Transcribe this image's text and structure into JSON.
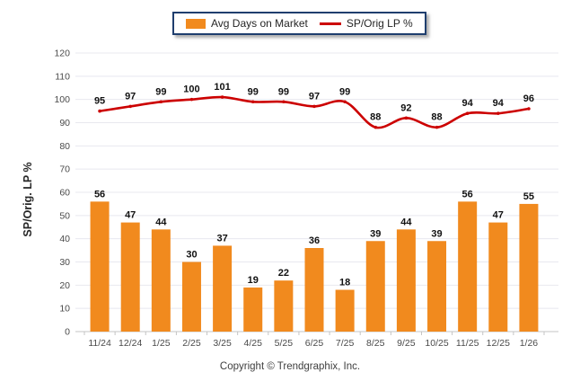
{
  "legend": {
    "items": [
      {
        "label": "Avg Days on Market",
        "swatch": "bar"
      },
      {
        "label": "SP/Orig LP %",
        "swatch": "line"
      }
    ]
  },
  "footer": {
    "copyright": "Copyright © Trendgraphix, Inc."
  },
  "colors": {
    "bar": "#F18A1E",
    "line": "#CC0000",
    "legend_border": "#1F3E6E",
    "grid": "#E8E8EF",
    "axis": "#C4C4C4",
    "tick_text": "#4A4A4A",
    "value_text": "#111111",
    "background": "#FFFFFF"
  },
  "chart_data": {
    "type": "bar+line",
    "categories": [
      "11/24",
      "12/24",
      "1/25",
      "2/25",
      "3/25",
      "4/25",
      "5/25",
      "6/25",
      "7/25",
      "8/25",
      "9/25",
      "10/25",
      "11/25",
      "12/25",
      "1/26"
    ],
    "series": [
      {
        "name": "Avg Days on Market",
        "type": "bar",
        "color": "#F18A1E",
        "values": [
          56,
          47,
          44,
          30,
          37,
          19,
          22,
          36,
          18,
          39,
          44,
          39,
          56,
          47,
          55
        ]
      },
      {
        "name": "SP/Orig LP %",
        "type": "line",
        "color": "#CC0000",
        "values": [
          95,
          97,
          99,
          100,
          101,
          99,
          99,
          97,
          99,
          88,
          92,
          88,
          94,
          94,
          96
        ]
      }
    ],
    "title": "",
    "xlabel": "",
    "ylabel": "SP/Orig. LP %",
    "ylim": [
      0,
      120
    ],
    "ytick_step": 10,
    "grid": true,
    "legend_position": "top-center",
    "value_labels": true
  }
}
